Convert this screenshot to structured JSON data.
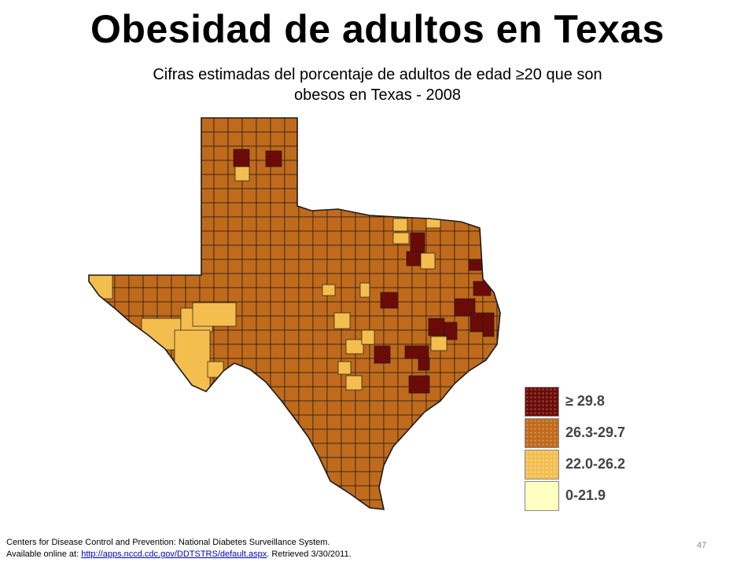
{
  "slide": {
    "title": "Obesidad de adultos en Texas",
    "subtitle_line1": "Cifras estimadas del porcentaje de adultos de edad ≥20 que son",
    "subtitle_line2": "obesos en Texas - 2008",
    "page_number": "47"
  },
  "map": {
    "region": "Texas",
    "unit": "counties",
    "colors": {
      "high": "#6b0b07",
      "mid": "#c06a1c",
      "low_mid": "#f3be4e",
      "low": "#ffffc2",
      "border": "#1a1a1a"
    }
  },
  "legend": {
    "items": [
      {
        "label": "≥ 29.8",
        "color": "#6b0b07"
      },
      {
        "label": "26.3-29.7",
        "color": "#c06a1c"
      },
      {
        "label": "22.0-26.2",
        "color": "#f3be4e"
      },
      {
        "label": "0-21.9",
        "color": "#ffffc2"
      }
    ]
  },
  "footer": {
    "line1": "Centers for Disease Control and Prevention: National Diabetes Surveillance System.",
    "line2_prefix": "Available online at: ",
    "link_text": "http://apps.nccd.cdc.gov/DDTSTRS/default.aspx",
    "line2_suffix": ".  Retrieved 3/30/2011."
  }
}
